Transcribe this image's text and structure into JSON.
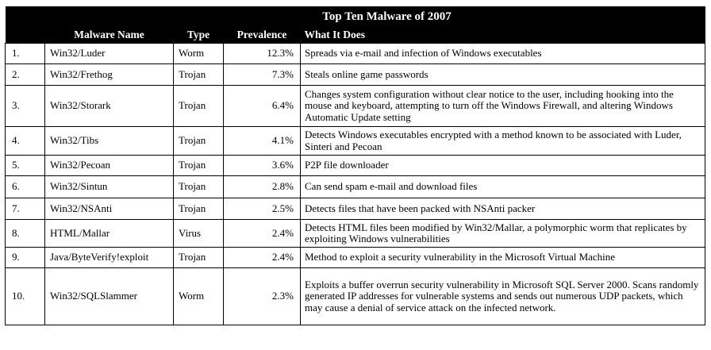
{
  "title": "Top Ten Malware of 2007",
  "columns": {
    "name": "Malware Name",
    "type": "Type",
    "prevalence": "Prevalence",
    "what": "What It Does"
  },
  "rows": [
    {
      "num": "1.",
      "name": "Win32/Luder",
      "type": "Worm",
      "prevalence": "12.3%",
      "what": "Spreads via e-mail and infection of Windows executables"
    },
    {
      "num": "2.",
      "name": "Win32/Frethog",
      "type": "Trojan",
      "prevalence": "7.3%",
      "what": "Steals online game passwords"
    },
    {
      "num": "3.",
      "name": "Win32/Storark",
      "type": "Trojan",
      "prevalence": "6.4%",
      "what": "Changes system configuration without clear notice to the user, including hooking into the mouse and keyboard, attempting to turn off the Windows Firewall, and altering Windows Automatic Update setting"
    },
    {
      "num": "4.",
      "name": "Win32/Tibs",
      "type": "Trojan",
      "prevalence": "4.1%",
      "what": "Detects Windows executables encrypted with a method known to be associated with Luder, Sinteri and Pecoan"
    },
    {
      "num": "5.",
      "name": "Win32/Pecoan",
      "type": "Trojan",
      "prevalence": "3.6%",
      "what": "P2P file downloader"
    },
    {
      "num": "6.",
      "name": "Win32/Sintun",
      "type": "Trojan",
      "prevalence": "2.8%",
      "what": "Can send spam e-mail and download files"
    },
    {
      "num": "7.",
      "name": "Win32/NSAnti",
      "type": "Trojan",
      "prevalence": "2.5%",
      "what": "Detects files that have been packed with NSAnti packer"
    },
    {
      "num": "8.",
      "name": "HTML/Mallar",
      "type": "Virus",
      "prevalence": "2.4%",
      "what": "Detects HTML files been modified by Win32/Mallar, a polymorphic worm that replicates by exploiting Windows vulnerabilities"
    },
    {
      "num": "9.",
      "name": "Java/ByteVerify!exploit",
      "type": "Trojan",
      "prevalence": "2.4%",
      "what": "Method to exploit a security vulnerability in the Microsoft Virtual Machine"
    },
    {
      "num": "10.",
      "name": "Win32/SQLSlammer",
      "type": "Worm",
      "prevalence": "2.3%",
      "what": "Exploits a buffer overrun security vulnerability in Microsoft SQL Server 2000. Scans randomly generated IP addresses for vulnerable systems and sends out numerous UDP packets, which may cause a denial of service attack on the infected network."
    }
  ]
}
